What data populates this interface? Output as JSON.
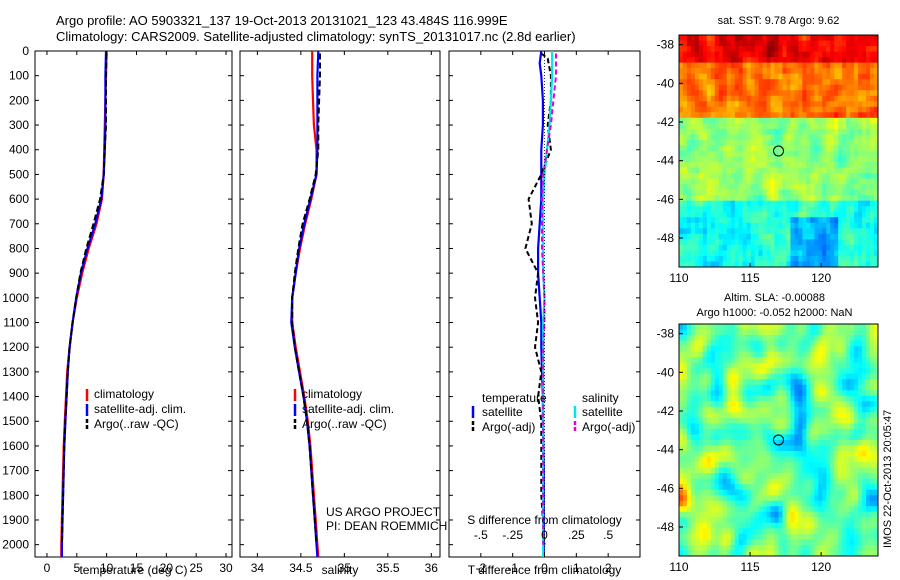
{
  "header": {
    "line1": "Argo profile: AO 5903321_137 19-Oct-2013 20131021_123 43.484S 116.999E",
    "line2": "Climatology: CARS2009. Satellite-adjusted climatology: synTS_20131017.nc (2.8d earlier)"
  },
  "colors": {
    "climatology": "#ff0000",
    "satellite": "#0000ff",
    "argo": "#000000",
    "salinity_satellite": "#00e5e5",
    "salinity_argo": "#e000e0",
    "map_marker": "#000000"
  },
  "chart_data": [
    {
      "type": "line",
      "xlabel": "temperature (deg C)",
      "ylabel": "",
      "xlim": [
        -2,
        31
      ],
      "ylim": [
        2050,
        0
      ],
      "y_reversed": true,
      "xticks": [
        0,
        5,
        10,
        15,
        20,
        25,
        30
      ],
      "yticks": [
        0,
        100,
        200,
        300,
        400,
        500,
        600,
        700,
        800,
        900,
        1000,
        1100,
        1200,
        1300,
        1400,
        1500,
        1600,
        1700,
        1800,
        1900,
        2000
      ],
      "legend": [
        "climatology",
        "satellite-adj. clim.",
        "Argo(..raw -QC)"
      ],
      "legend_position": "bottom-right",
      "series": [
        {
          "name": "climatology",
          "depth": [
            0,
            100,
            200,
            300,
            400,
            500,
            600,
            700,
            800,
            900,
            1000,
            1100,
            1200,
            1300,
            1400,
            1500,
            1600,
            1700,
            1800,
            1900,
            2000,
            2050
          ],
          "values": [
            10.0,
            9.9,
            9.8,
            9.7,
            9.6,
            9.5,
            9.2,
            8.3,
            7.0,
            5.9,
            5.0,
            4.3,
            3.8,
            3.4,
            3.2,
            3.0,
            2.8,
            2.7,
            2.6,
            2.5,
            2.4,
            2.4
          ]
        },
        {
          "name": "satellite-adj. clim.",
          "depth": [
            0,
            100,
            200,
            300,
            400,
            500,
            600,
            700,
            800,
            900,
            1000,
            1100,
            1200,
            1300,
            1400,
            1500,
            1600,
            1700,
            1800,
            1900,
            2000,
            2050
          ],
          "values": [
            9.9,
            9.8,
            9.8,
            9.8,
            9.7,
            9.5,
            9.1,
            8.1,
            6.8,
            5.7,
            4.9,
            4.3,
            3.8,
            3.5,
            3.3,
            3.1,
            2.9,
            2.8,
            2.7,
            2.6,
            2.5,
            2.5
          ]
        },
        {
          "name": "Argo(..raw -QC)",
          "depth": [
            10,
            100,
            200,
            300,
            400,
            500,
            600,
            700,
            800,
            900,
            1000,
            1100,
            1200,
            1300,
            1400,
            1500,
            1600,
            1700,
            1800,
            1900,
            2000
          ],
          "values": [
            10.0,
            9.9,
            9.9,
            9.9,
            9.7,
            9.5,
            8.9,
            7.8,
            6.6,
            5.6,
            4.9,
            4.3,
            3.8,
            3.5,
            3.3,
            3.1,
            2.9,
            2.8,
            2.7,
            2.6,
            2.5
          ]
        }
      ]
    },
    {
      "type": "line",
      "xlabel": "salinity",
      "xlim": [
        33.8,
        36.1
      ],
      "ylim": [
        2050,
        0
      ],
      "y_reversed": true,
      "xticks": [
        34,
        34.5,
        35,
        35.5,
        36
      ],
      "legend": [
        "climatology",
        "satellite-adj. clim.",
        "Argo(..raw -QC)"
      ],
      "legend_position": "bottom-right",
      "annotation": [
        "US ARGO PROJECT",
        "PI: DEAN ROEMMICH"
      ],
      "series": [
        {
          "name": "climatology",
          "depth": [
            0,
            100,
            200,
            300,
            400,
            500,
            600,
            700,
            800,
            900,
            1000,
            1100,
            1200,
            1300,
            1400,
            1500,
            1600,
            1700,
            1800,
            1900,
            2000,
            2050
          ],
          "values": [
            34.63,
            34.63,
            34.64,
            34.65,
            34.68,
            34.68,
            34.62,
            34.55,
            34.49,
            34.44,
            34.4,
            34.4,
            34.44,
            34.49,
            34.54,
            34.58,
            34.61,
            34.63,
            34.65,
            34.67,
            34.69,
            34.7
          ]
        },
        {
          "name": "satellite-adj. clim.",
          "depth": [
            0,
            100,
            200,
            300,
            400,
            500,
            600,
            700,
            800,
            900,
            1000,
            1100,
            1200,
            1300,
            1400,
            1500,
            1600,
            1700,
            1800,
            1900,
            2000,
            2050
          ],
          "values": [
            34.7,
            34.69,
            34.69,
            34.69,
            34.69,
            34.68,
            34.61,
            34.54,
            34.48,
            34.44,
            34.4,
            34.39,
            34.43,
            34.48,
            34.53,
            34.57,
            34.6,
            34.62,
            34.64,
            34.66,
            34.68,
            34.69
          ]
        },
        {
          "name": "Argo(..raw -QC)",
          "depth": [
            10,
            100,
            200,
            300,
            400,
            500,
            600,
            700,
            800,
            900,
            1000,
            1100,
            1200,
            1300,
            1400,
            1500,
            1600,
            1700,
            1800,
            1900,
            2000
          ],
          "values": [
            34.72,
            34.72,
            34.71,
            34.7,
            34.7,
            34.67,
            34.6,
            34.52,
            34.47,
            34.43,
            34.4,
            34.4,
            34.43,
            34.48,
            34.53,
            34.57,
            34.6,
            34.62,
            34.64,
            34.66,
            34.68
          ]
        }
      ]
    },
    {
      "type": "line",
      "xlabel": "T difference from climatology",
      "xlabel2": "S difference from climatology",
      "xlim": [
        -3,
        3
      ],
      "ylim": [
        2050,
        0
      ],
      "y_reversed": true,
      "xticks": [
        -2,
        -1,
        0,
        1,
        2
      ],
      "xticks2": [
        -0.5,
        -0.25,
        0,
        0.25,
        0.5
      ],
      "legend_temperature": [
        "temperature",
        "satellite",
        "Argo(-adj)"
      ],
      "legend_salinity": [
        "salinity",
        "satellite",
        "Argo(-adj)"
      ],
      "legend_position": "bottom",
      "series": [
        {
          "name": "temperature satellite",
          "depth": [
            0,
            50,
            100,
            200,
            300,
            400,
            500,
            600,
            700,
            800,
            900,
            1000,
            1100,
            1200,
            1300,
            1400,
            1500,
            1600,
            1700,
            1800,
            1900,
            2000,
            2050
          ],
          "values": [
            -0.1,
            -0.15,
            -0.1,
            -0.05,
            -0.05,
            -0.1,
            -0.1,
            -0.1,
            -0.15,
            -0.2,
            -0.2,
            -0.15,
            -0.1,
            -0.1,
            -0.08,
            -0.05,
            -0.05,
            -0.03,
            -0.02,
            -0.02,
            -0.02,
            -0.02,
            -0.02
          ]
        },
        {
          "name": "temperature Argo(-adj)",
          "depth": [
            10,
            30,
            100,
            200,
            300,
            400,
            500,
            600,
            700,
            800,
            900,
            1000,
            1100,
            1200,
            1300,
            1400,
            1500,
            1600,
            1700,
            1800,
            1900,
            2000
          ],
          "values": [
            -0.1,
            0.1,
            0.2,
            0.2,
            0.1,
            0.2,
            -0.1,
            -0.5,
            -0.4,
            -0.6,
            -0.2,
            -0.3,
            -0.2,
            -0.3,
            -0.1,
            -0.2,
            -0.1,
            -0.1,
            -0.1,
            -0.1,
            -0.05,
            0.0
          ]
        },
        {
          "name": "salinity satellite",
          "depth": [
            0,
            100,
            200,
            300,
            400,
            500,
            600,
            700,
            800,
            900,
            1000,
            1100,
            1200,
            1300,
            1400,
            1500,
            1600,
            1700,
            1800,
            1900,
            2000,
            2050
          ],
          "values": [
            0.06,
            0.06,
            0.05,
            0.04,
            0.02,
            0.0,
            -0.01,
            -0.01,
            -0.01,
            -0.01,
            0.0,
            -0.01,
            -0.01,
            -0.01,
            -0.01,
            -0.01,
            -0.01,
            -0.01,
            -0.01,
            -0.01,
            -0.01,
            -0.01
          ]
        },
        {
          "name": "salinity Argo(-adj)",
          "depth": [
            10,
            100,
            200,
            300,
            400,
            500,
            600,
            700,
            800,
            900,
            1000,
            1100,
            1200,
            1300,
            1400,
            1500,
            1600,
            1700,
            1800,
            1900,
            2000
          ],
          "values": [
            0.09,
            0.09,
            0.07,
            0.05,
            0.02,
            -0.01,
            -0.02,
            -0.02,
            -0.02,
            -0.01,
            0.0,
            0.0,
            -0.01,
            -0.01,
            -0.01,
            -0.01,
            -0.01,
            -0.01,
            -0.01,
            -0.01,
            -0.01
          ]
        }
      ]
    },
    {
      "type": "heatmap",
      "title": "sat. SST: 9.78 Argo: 9.62",
      "xlim": [
        110,
        124
      ],
      "ylim": [
        -49.5,
        -37.5
      ],
      "xticks": [
        110,
        115,
        120
      ],
      "yticks": [
        -38,
        -40,
        -42,
        -44,
        -46,
        -48
      ],
      "marker": {
        "lon": 117.0,
        "lat": -43.5
      }
    },
    {
      "type": "heatmap",
      "title": "Altim. SLA: -0.00088",
      "subtitle": "Argo h1000: -0.052 h2000: NaN",
      "xlim": [
        110,
        124
      ],
      "ylim": [
        -49.5,
        -37.5
      ],
      "xticks": [
        110,
        115,
        120
      ],
      "yticks": [
        -38,
        -40,
        -42,
        -44,
        -46,
        -48
      ],
      "marker": {
        "lon": 117.0,
        "lat": -43.5
      }
    }
  ],
  "side_label": "IMOS 22-Oct-2013 20:05:47"
}
